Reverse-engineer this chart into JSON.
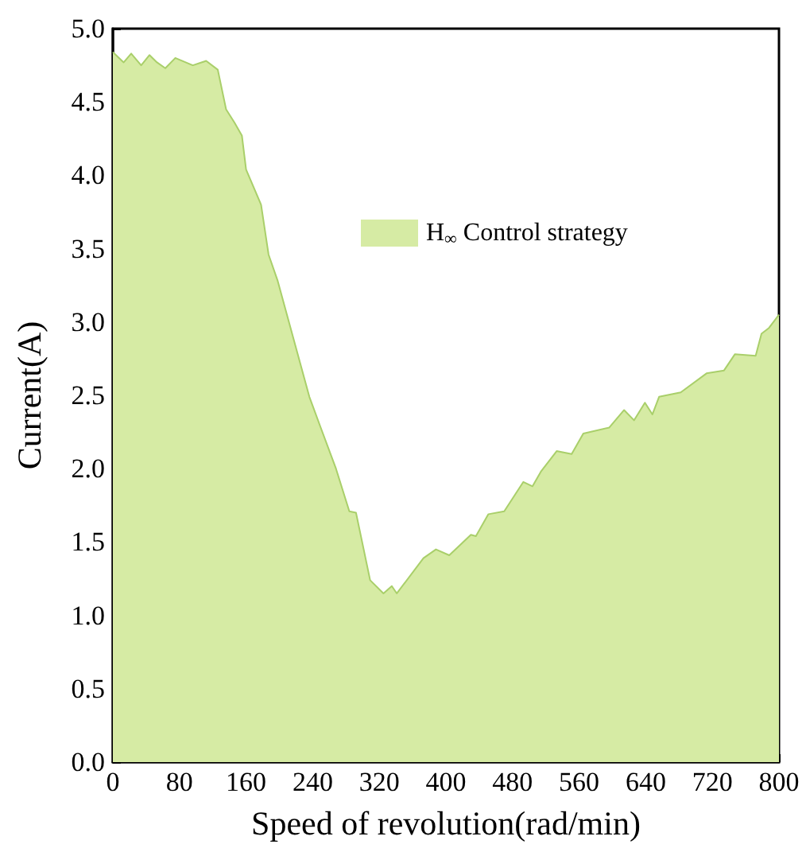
{
  "chart_data": {
    "type": "area",
    "xlabel": "Speed of revolution(rad/min)",
    "ylabel": "Current(A)",
    "xlim": [
      0,
      800
    ],
    "xticks": [
      0,
      80,
      160,
      240,
      320,
      400,
      480,
      560,
      640,
      720,
      800
    ],
    "ylim": [
      0,
      5
    ],
    "yticks": [
      {
        "value": 0,
        "label": "0.0"
      },
      {
        "value": 0.5,
        "label": "0.5"
      },
      {
        "value": 1,
        "label": "1.0"
      },
      {
        "value": 1.5,
        "label": "1.5"
      },
      {
        "value": 2,
        "label": "2.0"
      },
      {
        "value": 2.5,
        "label": "2.5"
      },
      {
        "value": 3,
        "label": "3.0"
      },
      {
        "value": 3.5,
        "label": "3.5"
      },
      {
        "value": 4,
        "label": "4.0"
      },
      {
        "value": 4.5,
        "label": "4.5"
      },
      {
        "value": 5,
        "label": "5.0"
      }
    ],
    "grid": false,
    "legend": "right",
    "marker": "none",
    "series": [
      {
        "name": "H$_{∞}$ Control strategy",
        "color": "#d6eba4",
        "x": [
          0,
          13,
          22,
          34,
          44,
          53,
          63,
          75,
          96,
          112,
          126,
          136,
          146,
          155,
          160,
          178,
          187,
          198,
          236,
          249,
          268,
          284,
          292,
          309,
          325,
          335,
          341,
          373,
          388,
          404,
          430,
          436,
          451,
          470,
          493,
          504,
          514,
          533,
          551,
          565,
          596,
          614,
          626,
          639,
          648,
          656,
          682,
          713,
          734,
          747,
          772,
          779,
          788,
          800
        ],
        "values": [
          4.84,
          4.77,
          4.83,
          4.75,
          4.82,
          4.77,
          4.73,
          4.8,
          4.75,
          4.78,
          4.72,
          4.45,
          4.36,
          4.27,
          4.04,
          3.8,
          3.46,
          3.28,
          2.49,
          2.29,
          2.0,
          1.71,
          1.7,
          1.24,
          1.15,
          1.2,
          1.15,
          1.39,
          1.45,
          1.41,
          1.55,
          1.54,
          1.69,
          1.71,
          1.91,
          1.88,
          1.98,
          2.12,
          2.1,
          2.24,
          2.28,
          2.4,
          2.33,
          2.45,
          2.37,
          2.49,
          2.52,
          2.65,
          2.67,
          2.78,
          2.77,
          2.92,
          2.96,
          3.05
        ]
      }
    ]
  }
}
